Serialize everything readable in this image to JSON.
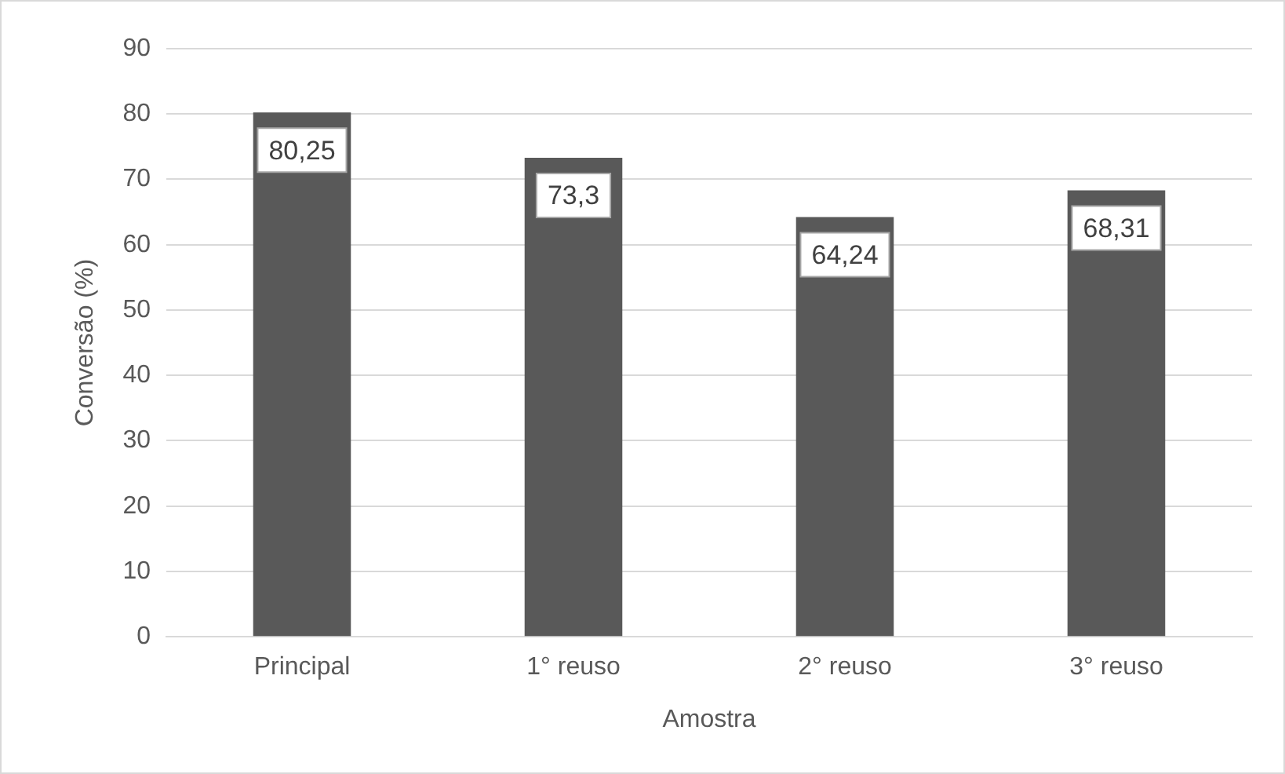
{
  "chart_data": {
    "type": "bar",
    "xlabel": "Amostra",
    "ylabel": "Conversão (%)",
    "categories": [
      "Principal",
      "1° reuso",
      "2° reuso",
      "3° reuso"
    ],
    "values": [
      80.25,
      73.3,
      64.24,
      68.31
    ],
    "value_labels": [
      "80,25",
      "73,3",
      "64,24",
      "68,31"
    ],
    "color": "#595959",
    "ylim": [
      0,
      90
    ],
    "yticks": [
      0,
      10,
      20,
      30,
      40,
      50,
      60,
      70,
      80,
      90
    ],
    "grid": "y"
  }
}
